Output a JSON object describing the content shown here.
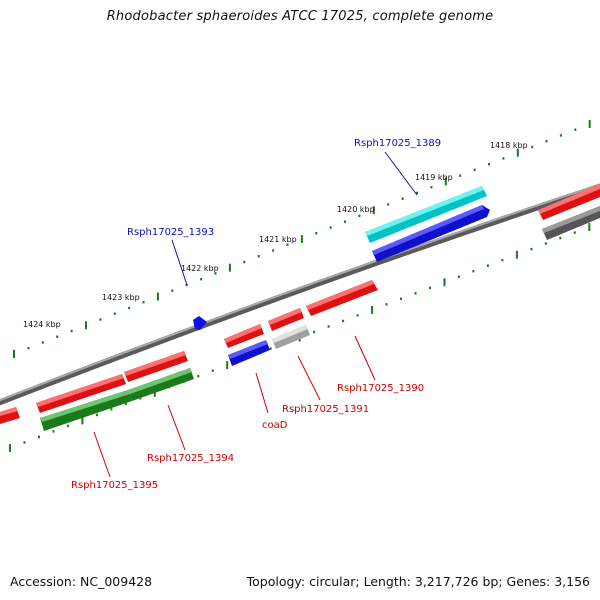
{
  "title": "Rhodobacter sphaeroides ATCC 17025, complete genome",
  "footer": {
    "accession": "Accession: NC_009428",
    "summary": "Topology: circular; Length: 3,217,726 bp; Genes: 3,156"
  },
  "ticks": {
    "outer_labels": [
      "1418 kbp",
      "1419 kbp",
      "1420 kbp",
      "1421 kbp",
      "1422 kbp",
      "1423 kbp",
      "1424 kbp"
    ]
  },
  "genes": [
    {
      "id": "g1389",
      "label": "Rsph17025_1389",
      "track": "outer-plus",
      "color": "#00d8d8",
      "label_color": "#1010b0"
    },
    {
      "id": "g1393",
      "label": "Rsph17025_1393",
      "track": "plus-small",
      "color": "#1010e8",
      "label_color": "#1010b0"
    },
    {
      "id": "g1390",
      "label": "Rsph17025_1390",
      "track": "minus",
      "color": "#ee1111",
      "label_color": "#cc0000"
    },
    {
      "id": "g1391",
      "label": "Rsph17025_1391",
      "track": "minus",
      "color": "#b8b8b8",
      "label_color": "#cc0000"
    },
    {
      "id": "coaD",
      "label": "coaD",
      "track": "minus",
      "color": "#1010e8",
      "label_color": "#cc0000"
    },
    {
      "id": "g1394",
      "label": "Rsph17025_1394",
      "track": "minus-outer",
      "color": "#1f8f1f",
      "label_color": "#cc0000"
    },
    {
      "id": "g1395",
      "label": "Rsph17025_1395",
      "track": "minus-outer",
      "color": "#1f8f1f",
      "label_color": "#cc0000"
    }
  ],
  "colors": {
    "backbone": "#8a8a8a",
    "tick": "#1a7a1a",
    "forward": "#ee1111",
    "reverse": "#1010e8",
    "cyan": "#00d8d8",
    "green": "#1f8f1f",
    "gray": "#b8b8b8",
    "dark": "#555555"
  }
}
